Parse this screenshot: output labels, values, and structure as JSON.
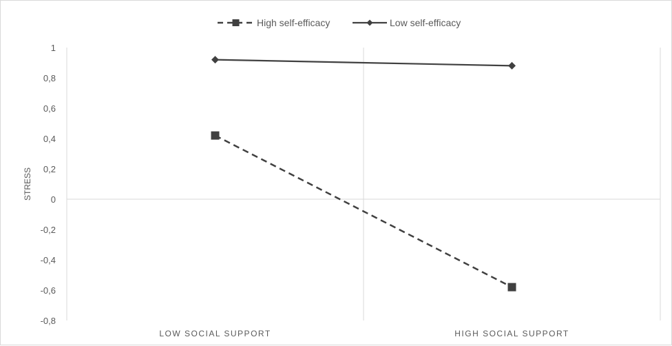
{
  "chart_data": {
    "type": "line",
    "title": "",
    "xlabel": "",
    "ylabel": "STRESS",
    "categories": [
      "LOW SOCIAL SUPPORT",
      "HIGH SOCIAL SUPPORT"
    ],
    "ylim": [
      -0.8,
      1
    ],
    "yticks": [
      1,
      0.8,
      0.6,
      0.4,
      0.2,
      0,
      -0.2,
      -0.4,
      -0.6,
      -0.8
    ],
    "ytick_labels": [
      "1",
      "0,8",
      "0,6",
      "0,4",
      "0,2",
      "0",
      "-0,2",
      "-0,4",
      "-0,6",
      "-0,8"
    ],
    "grid": "vertical category gridlines, horizontal zero line",
    "legend_position": "top",
    "series": [
      {
        "name": "High self-efficacy",
        "values": [
          0.42,
          -0.58
        ],
        "line_style": "dashed",
        "marker": "square",
        "color": "#404040"
      },
      {
        "name": "Low self-efficacy",
        "values": [
          0.92,
          0.88
        ],
        "line_style": "solid",
        "marker": "diamond",
        "color": "#404040"
      }
    ]
  }
}
